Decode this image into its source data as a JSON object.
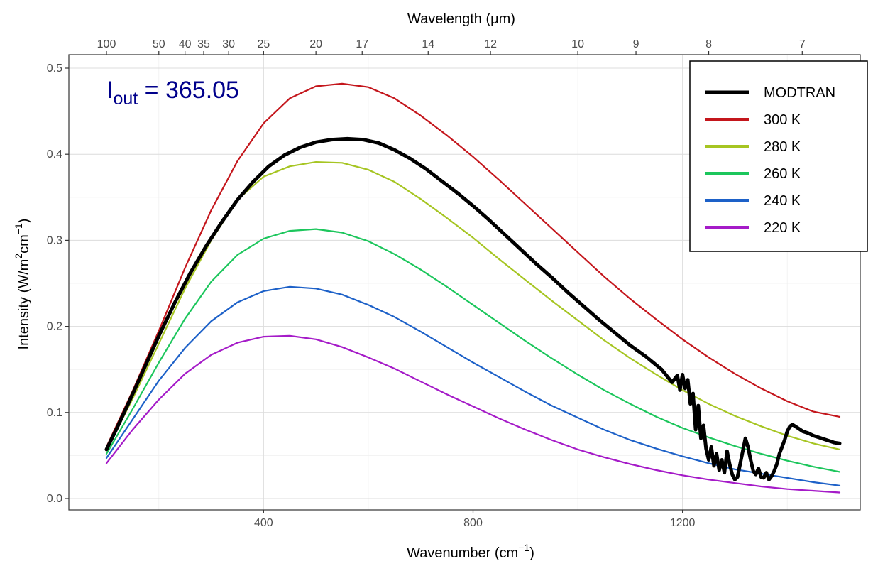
{
  "chart_data": {
    "type": "line",
    "x_label": "Wavenumber (cm",
    "x_label_sup": "−1",
    "x_label_end": ")",
    "top_axis_label": "Wavelength (μm)",
    "y_label": "Intensity (W/m",
    "y_label_sup1": "2",
    "y_label_mid": "cm",
    "y_label_sup2": "−1",
    "y_label_end": ")",
    "xlim": [
      100,
      1500
    ],
    "ylim": [
      0,
      0.5
    ],
    "x_ticks": [
      400,
      800,
      1200
    ],
    "y_ticks": [
      0.0,
      0.1,
      0.2,
      0.3,
      0.4,
      0.5
    ],
    "y_tick_labels": [
      "0.0",
      "0.1",
      "0.2",
      "0.3",
      "0.4",
      "0.5"
    ],
    "top_ticks_um": [
      100,
      50,
      40,
      35,
      30,
      25,
      20,
      17,
      14,
      12,
      10,
      9,
      8,
      7
    ],
    "top_tick_labels": [
      "100",
      "50",
      "40",
      "35",
      "30",
      "25",
      "20",
      "17",
      "14",
      "12",
      "10",
      "9",
      "8",
      "7"
    ],
    "grid": true,
    "legend_position": "top-right",
    "annotation": {
      "text_main": "I",
      "text_sub": "out",
      "text_rest": " = 365.05"
    },
    "series": [
      {
        "name": "MODTRAN",
        "color": "#000000",
        "x": [
          100,
          120,
          140,
          160,
          180,
          200,
          230,
          260,
          290,
          320,
          350,
          380,
          410,
          440,
          470,
          500,
          530,
          560,
          590,
          620,
          650,
          680,
          710,
          740,
          770,
          800,
          830,
          860,
          890,
          920,
          950,
          980,
          1010,
          1040,
          1070,
          1100,
          1130,
          1160,
          1180,
          1190,
          1195,
          1200,
          1205,
          1210,
          1215,
          1220,
          1225,
          1230,
          1235,
          1240,
          1245,
          1250,
          1255,
          1260,
          1265,
          1270,
          1275,
          1280,
          1285,
          1290,
          1295,
          1300,
          1305,
          1310,
          1315,
          1320,
          1325,
          1330,
          1335,
          1340,
          1345,
          1350,
          1355,
          1360,
          1365,
          1370,
          1375,
          1380,
          1385,
          1390,
          1395,
          1400,
          1405,
          1410,
          1420,
          1430,
          1440,
          1450,
          1460,
          1470,
          1480,
          1490,
          1500
        ],
        "y": [
          0.057,
          0.082,
          0.108,
          0.135,
          0.162,
          0.189,
          0.227,
          0.262,
          0.293,
          0.321,
          0.347,
          0.368,
          0.386,
          0.399,
          0.408,
          0.414,
          0.417,
          0.418,
          0.417,
          0.413,
          0.405,
          0.395,
          0.383,
          0.369,
          0.355,
          0.34,
          0.324,
          0.307,
          0.29,
          0.273,
          0.257,
          0.24,
          0.224,
          0.208,
          0.193,
          0.178,
          0.165,
          0.15,
          0.135,
          0.143,
          0.126,
          0.144,
          0.128,
          0.138,
          0.11,
          0.122,
          0.08,
          0.108,
          0.07,
          0.085,
          0.058,
          0.045,
          0.06,
          0.038,
          0.052,
          0.033,
          0.045,
          0.03,
          0.055,
          0.04,
          0.028,
          0.022,
          0.025,
          0.04,
          0.055,
          0.07,
          0.06,
          0.045,
          0.032,
          0.028,
          0.035,
          0.025,
          0.024,
          0.03,
          0.022,
          0.026,
          0.032,
          0.04,
          0.052,
          0.06,
          0.068,
          0.078,
          0.084,
          0.086,
          0.082,
          0.078,
          0.076,
          0.073,
          0.071,
          0.069,
          0.067,
          0.065,
          0.064
        ]
      },
      {
        "name": "300 K",
        "color": "#c4161c",
        "x": [
          100,
          150,
          200,
          250,
          300,
          350,
          400,
          450,
          500,
          550,
          600,
          650,
          700,
          750,
          800,
          850,
          900,
          950,
          1000,
          1050,
          1100,
          1150,
          1200,
          1250,
          1300,
          1350,
          1400,
          1450,
          1500
        ],
        "y": [
          0.06,
          0.125,
          0.195,
          0.268,
          0.335,
          0.392,
          0.436,
          0.465,
          0.479,
          0.482,
          0.478,
          0.465,
          0.445,
          0.422,
          0.397,
          0.37,
          0.342,
          0.314,
          0.286,
          0.258,
          0.232,
          0.208,
          0.185,
          0.164,
          0.145,
          0.128,
          0.113,
          0.101,
          0.095
        ]
      },
      {
        "name": "280 K",
        "color": "#a6c522",
        "x": [
          100,
          150,
          200,
          250,
          300,
          350,
          400,
          450,
          500,
          550,
          600,
          650,
          700,
          750,
          800,
          850,
          900,
          950,
          1000,
          1050,
          1100,
          1150,
          1200,
          1250,
          1300,
          1350,
          1400,
          1450,
          1500
        ],
        "y": [
          0.056,
          0.116,
          0.18,
          0.244,
          0.3,
          0.347,
          0.374,
          0.386,
          0.391,
          0.39,
          0.382,
          0.368,
          0.348,
          0.326,
          0.303,
          0.278,
          0.254,
          0.23,
          0.207,
          0.184,
          0.163,
          0.144,
          0.126,
          0.11,
          0.096,
          0.084,
          0.073,
          0.064,
          0.057
        ]
      },
      {
        "name": "260 K",
        "color": "#1cc65c",
        "x": [
          100,
          150,
          200,
          250,
          300,
          350,
          400,
          450,
          500,
          550,
          600,
          650,
          700,
          750,
          800,
          850,
          900,
          950,
          1000,
          1050,
          1100,
          1150,
          1200,
          1250,
          1300,
          1350,
          1400,
          1450,
          1500
        ],
        "y": [
          0.052,
          0.104,
          0.158,
          0.209,
          0.252,
          0.283,
          0.302,
          0.311,
          0.313,
          0.309,
          0.299,
          0.284,
          0.266,
          0.246,
          0.225,
          0.204,
          0.183,
          0.163,
          0.144,
          0.126,
          0.11,
          0.095,
          0.082,
          0.071,
          0.061,
          0.052,
          0.044,
          0.037,
          0.031
        ]
      },
      {
        "name": "240 K",
        "color": "#1d61c8",
        "x": [
          100,
          150,
          200,
          250,
          300,
          350,
          400,
          450,
          500,
          550,
          600,
          650,
          700,
          750,
          800,
          850,
          900,
          950,
          1000,
          1050,
          1100,
          1150,
          1200,
          1250,
          1300,
          1350,
          1400,
          1450,
          1500
        ],
        "y": [
          0.047,
          0.092,
          0.137,
          0.175,
          0.206,
          0.228,
          0.241,
          0.246,
          0.244,
          0.237,
          0.225,
          0.211,
          0.194,
          0.176,
          0.158,
          0.141,
          0.124,
          0.108,
          0.094,
          0.08,
          0.068,
          0.058,
          0.049,
          0.041,
          0.034,
          0.029,
          0.024,
          0.019,
          0.015
        ]
      },
      {
        "name": "220 K",
        "color": "#a51bc8",
        "x": [
          100,
          150,
          200,
          250,
          300,
          350,
          400,
          450,
          500,
          550,
          600,
          650,
          700,
          750,
          800,
          850,
          900,
          950,
          1000,
          1050,
          1100,
          1150,
          1200,
          1250,
          1300,
          1350,
          1400,
          1450,
          1500
        ],
        "y": [
          0.041,
          0.08,
          0.115,
          0.145,
          0.167,
          0.181,
          0.188,
          0.189,
          0.185,
          0.176,
          0.164,
          0.151,
          0.136,
          0.121,
          0.107,
          0.093,
          0.08,
          0.068,
          0.057,
          0.048,
          0.04,
          0.033,
          0.027,
          0.022,
          0.018,
          0.014,
          0.011,
          0.009,
          0.007
        ]
      }
    ]
  }
}
